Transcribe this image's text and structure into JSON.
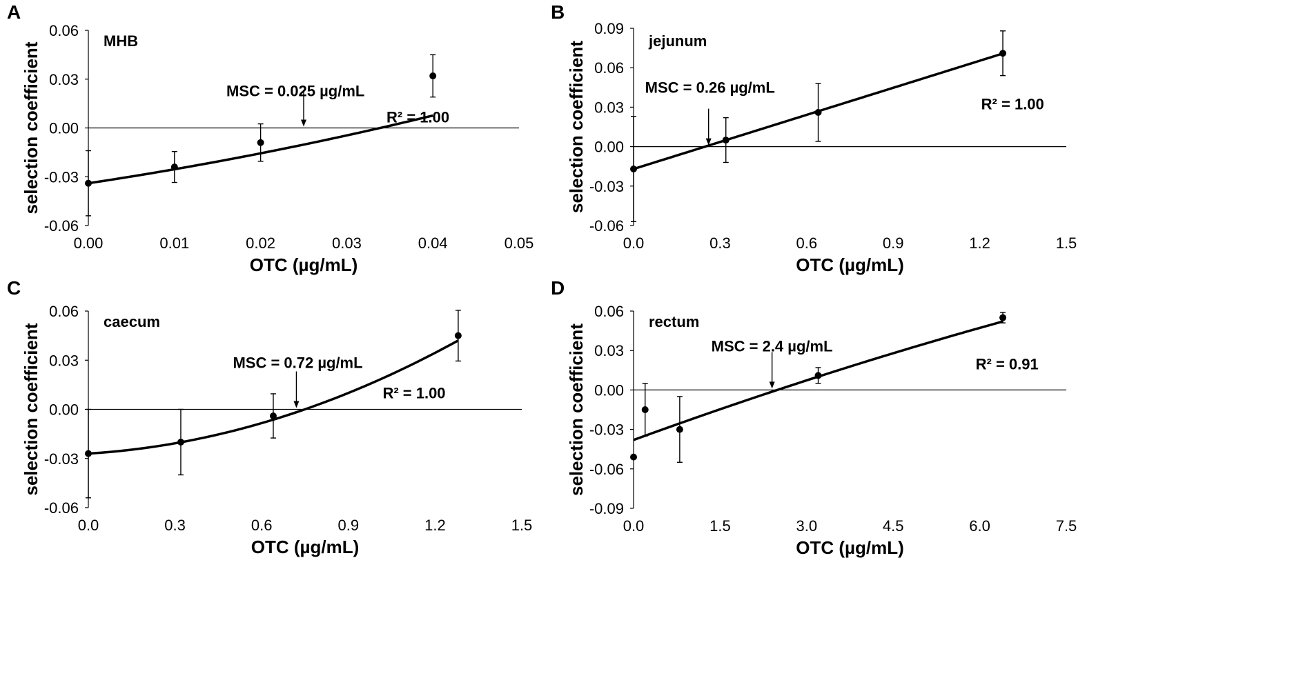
{
  "figure": {
    "panels": [
      "A",
      "B",
      "C",
      "D"
    ]
  },
  "chart_data": [
    {
      "panel": "A",
      "type": "scatter",
      "inner_label": "MHB",
      "xlabel": "OTC (µg/mL)",
      "ylabel": "selection coefficient",
      "xlim": [
        0,
        0.05
      ],
      "ylim": [
        -0.06,
        0.06
      ],
      "xticks": [
        0,
        0.01,
        0.02,
        0.03,
        0.04,
        0.05
      ],
      "xtick_labels": [
        "0.00",
        "0.01",
        "0.02",
        "0.03",
        "0.04",
        "0.05"
      ],
      "yticks": [
        -0.06,
        -0.03,
        0,
        0.03,
        0.06
      ],
      "ytick_labels": [
        "-0.06",
        "-0.03",
        "0.00",
        "0.03",
        "0.06"
      ],
      "x": [
        0,
        0.01,
        0.02,
        0.04
      ],
      "y": [
        -0.034,
        -0.024,
        -0.009,
        0.032
      ],
      "err": [
        0.02,
        0.0095,
        0.0115,
        0.013
      ],
      "fit": {
        "type": "quadratic",
        "coef": [
          -0.034,
          0.8,
          6.0
        ],
        "xrange": [
          0,
          0.04
        ]
      },
      "msc_label": "MSC = 0.025 µg/mL",
      "msc_x": 0.025,
      "r2_label": "R² = 1.00"
    },
    {
      "panel": "B",
      "type": "scatter",
      "inner_label": "jejunum",
      "xlabel": "OTC (µg/mL)",
      "ylabel": "selection coefficient",
      "xlim": [
        0,
        1.5
      ],
      "ylim": [
        -0.06,
        0.09
      ],
      "xticks": [
        0,
        0.3,
        0.6,
        0.9,
        1.2,
        1.5
      ],
      "xtick_labels": [
        "0.0",
        "0.3",
        "0.6",
        "0.9",
        "1.2",
        "1.5"
      ],
      "yticks": [
        -0.06,
        -0.03,
        0,
        0.03,
        0.06,
        0.09
      ],
      "ytick_labels": [
        "-0.06",
        "-0.03",
        "0.00",
        "0.03",
        "0.06",
        "0.09"
      ],
      "x": [
        0,
        0.32,
        0.64,
        1.28
      ],
      "y": [
        -0.017,
        0.005,
        0.026,
        0.071
      ],
      "err": [
        0.04,
        0.017,
        0.022,
        0.017
      ],
      "fit": {
        "type": "linear",
        "coef": [
          -0.017,
          0.0686
        ],
        "xrange": [
          0,
          1.28
        ]
      },
      "msc_label": "MSC = 0.26 µg/mL",
      "msc_x": 0.26,
      "r2_label": "R² = 1.00"
    },
    {
      "panel": "C",
      "type": "scatter",
      "inner_label": "caecum",
      "xlabel": "OTC (µg/mL)",
      "ylabel": "selection coefficient",
      "xlim": [
        0,
        1.5
      ],
      "ylim": [
        -0.06,
        0.06
      ],
      "xticks": [
        0,
        0.3,
        0.6,
        0.9,
        1.2,
        1.5
      ],
      "xtick_labels": [
        "0.0",
        "0.3",
        "0.6",
        "0.9",
        "1.2",
        "1.5"
      ],
      "yticks": [
        -0.06,
        -0.03,
        0,
        0.03,
        0.06
      ],
      "ytick_labels": [
        "-0.06",
        "-0.03",
        "0.00",
        "0.03",
        "0.06"
      ],
      "x": [
        0,
        0.32,
        0.64,
        1.28
      ],
      "y": [
        -0.027,
        -0.02,
        -0.004,
        0.045
      ],
      "err": [
        0.027,
        0.02,
        0.0135,
        0.0155
      ],
      "fit": {
        "type": "quadratic",
        "coef": [
          -0.027,
          0.0108,
          0.0337
        ],
        "xrange": [
          0,
          1.28
        ]
      },
      "msc_label": "MSC = 0.72 µg/mL",
      "msc_x": 0.72,
      "r2_label": "R² = 1.00"
    },
    {
      "panel": "D",
      "type": "scatter",
      "inner_label": "rectum",
      "xlabel": "OTC (µg/mL)",
      "ylabel": "selection coefficient",
      "xlim": [
        0,
        7.5
      ],
      "ylim": [
        -0.09,
        0.06
      ],
      "xticks": [
        0,
        1.5,
        3.0,
        4.5,
        6.0,
        7.5
      ],
      "xtick_labels": [
        "0.0",
        "1.5",
        "3.0",
        "4.5",
        "6.0",
        "7.5"
      ],
      "yticks": [
        -0.09,
        -0.06,
        -0.03,
        0,
        0.03,
        0.06
      ],
      "ytick_labels": [
        "-0.09",
        "-0.06",
        "-0.03",
        "0.00",
        "0.03",
        "0.06"
      ],
      "x": [
        0,
        0.2,
        0.8,
        3.2,
        6.4
      ],
      "y": [
        -0.051,
        -0.015,
        -0.03,
        0.011,
        0.055
      ],
      "err": [
        0,
        0.02,
        0.025,
        0.006,
        0.004
      ],
      "fit": {
        "type": "quadratic",
        "coef": [
          -0.038,
          0.016,
          -0.0003
        ],
        "xrange": [
          0,
          6.4
        ]
      },
      "msc_label": "MSC = 2.4 µg/mL",
      "msc_x": 2.4,
      "r2_label": "R² = 0.91"
    }
  ]
}
